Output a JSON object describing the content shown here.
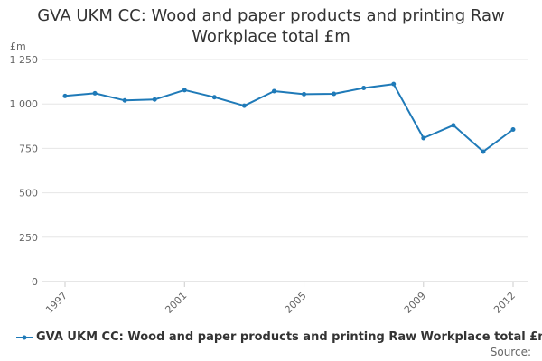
{
  "chart_data": {
    "type": "line",
    "title_lines": [
      "GVA UKM CC: Wood and paper products and printing Raw",
      "Workplace total £m"
    ],
    "ylabel": "£m",
    "xlabel": "",
    "ylim": [
      0,
      1250
    ],
    "yticks": [
      0,
      250,
      500,
      750,
      1000,
      1250
    ],
    "ytick_labels": [
      "0",
      "250",
      "500",
      "750",
      "1 000",
      "1 250"
    ],
    "xlim": [
      1997,
      2012
    ],
    "xticks": [
      1997,
      2001,
      2005,
      2009,
      2012
    ],
    "xtick_labels": [
      "1997",
      "2001",
      "2005",
      "2009",
      "2012"
    ],
    "grid": true,
    "legend_position": "bottom-left",
    "series": [
      {
        "name": "GVA UKM CC: Wood and paper products and printing Raw Workplace total £m",
        "color": "#1f7ab8",
        "x": [
          1997,
          1998,
          1999,
          2000,
          2001,
          2002,
          2003,
          2004,
          2005,
          2006,
          2007,
          2008,
          2009,
          2010,
          2011,
          2012
        ],
        "values": [
          1045,
          1060,
          1020,
          1025,
          1078,
          1038,
          990,
          1072,
          1055,
          1057,
          1090,
          1112,
          808,
          880,
          732,
          856
        ]
      }
    ]
  },
  "source_label": "Source:"
}
